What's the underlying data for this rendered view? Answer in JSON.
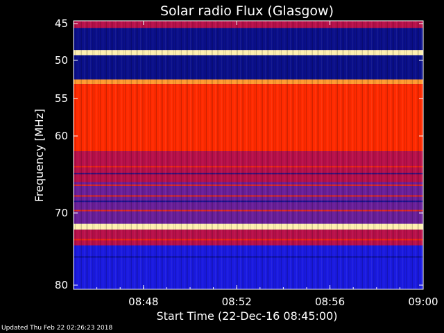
{
  "chart_data": {
    "type": "heatmap",
    "title": "Solar radio Flux (Glasgow)",
    "xlabel": "Start Time (22-Dec-16 08:45:00)",
    "ylabel": "Frequency [MHz]",
    "x_range": [
      "08:45:00",
      "09:00:00"
    ],
    "xticks": [
      "08:48",
      "08:52",
      "08:56",
      "09:00"
    ],
    "ylim": [
      45,
      80
    ],
    "yticks": [
      45,
      50,
      55,
      60,
      70,
      80
    ],
    "y_scale": "nonlinear-increasing-downward",
    "colormap": [
      "#000000",
      "#0a0f8a",
      "#1a1ae0",
      "#6a1f9a",
      "#b8104a",
      "#e60a0a",
      "#ff2a00",
      "#ff9a30",
      "#fff0b0"
    ],
    "bands_mhz": [
      {
        "from": 45.0,
        "to": 45.6,
        "level": 0.45
      },
      {
        "from": 45.6,
        "to": 48.6,
        "level": 0.08
      },
      {
        "from": 48.6,
        "to": 49.3,
        "level": 0.95
      },
      {
        "from": 49.3,
        "to": 52.5,
        "level": 0.12
      },
      {
        "from": 52.5,
        "to": 53.1,
        "level": 0.85
      },
      {
        "from": 53.1,
        "to": 62.0,
        "level": 0.7
      },
      {
        "from": 62.0,
        "to": 66.0,
        "level": 0.45
      },
      {
        "from": 66.0,
        "to": 71.5,
        "level": 0.42
      },
      {
        "from": 71.5,
        "to": 72.3,
        "level": 0.95
      },
      {
        "from": 72.3,
        "to": 74.5,
        "level": 0.55
      },
      {
        "from": 74.5,
        "to": 80.0,
        "level": 0.28
      }
    ],
    "grid": false,
    "legend": "none"
  },
  "footer": "Updated Thu Feb 22 02:26:23 2018"
}
